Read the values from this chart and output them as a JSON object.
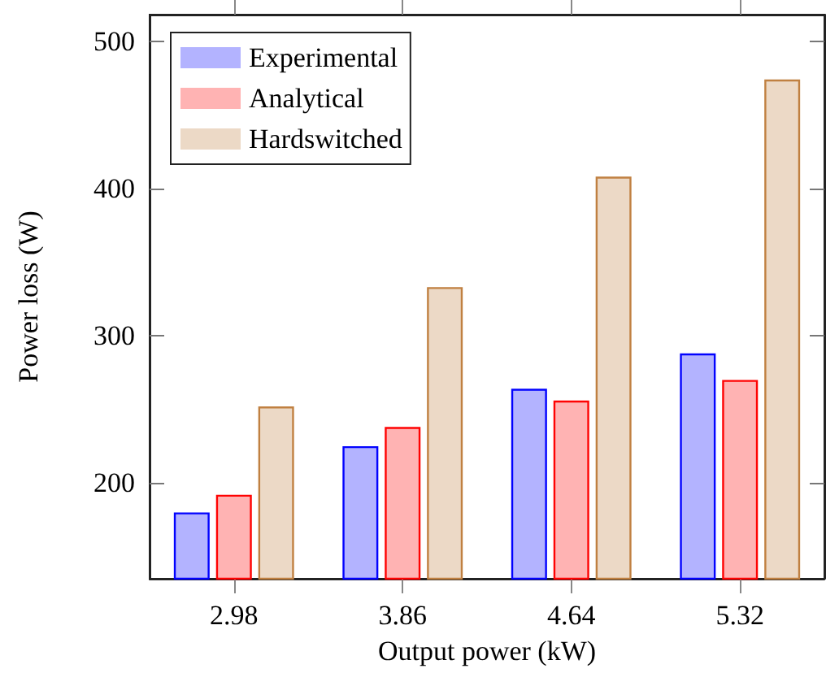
{
  "chart_data": {
    "type": "bar",
    "xlabel": "Output power (kW)",
    "ylabel": "Power loss (W)",
    "categories": [
      "2.98",
      "3.86",
      "4.64",
      "5.32"
    ],
    "series": [
      {
        "name": "Experimental",
        "color": "#b3b3ff",
        "values": [
          180,
          225,
          264,
          288
        ]
      },
      {
        "name": "Analytical",
        "color": "#ffb3b3",
        "values": [
          192,
          238,
          256,
          270
        ]
      },
      {
        "name": "Hardswitched",
        "color": "#ecd9c6",
        "values": [
          252,
          333,
          408,
          474
        ]
      }
    ],
    "ylim": [
      135,
      518
    ],
    "yticks": [
      200,
      300,
      400,
      500
    ],
    "grid": false,
    "legend": "top left"
  }
}
